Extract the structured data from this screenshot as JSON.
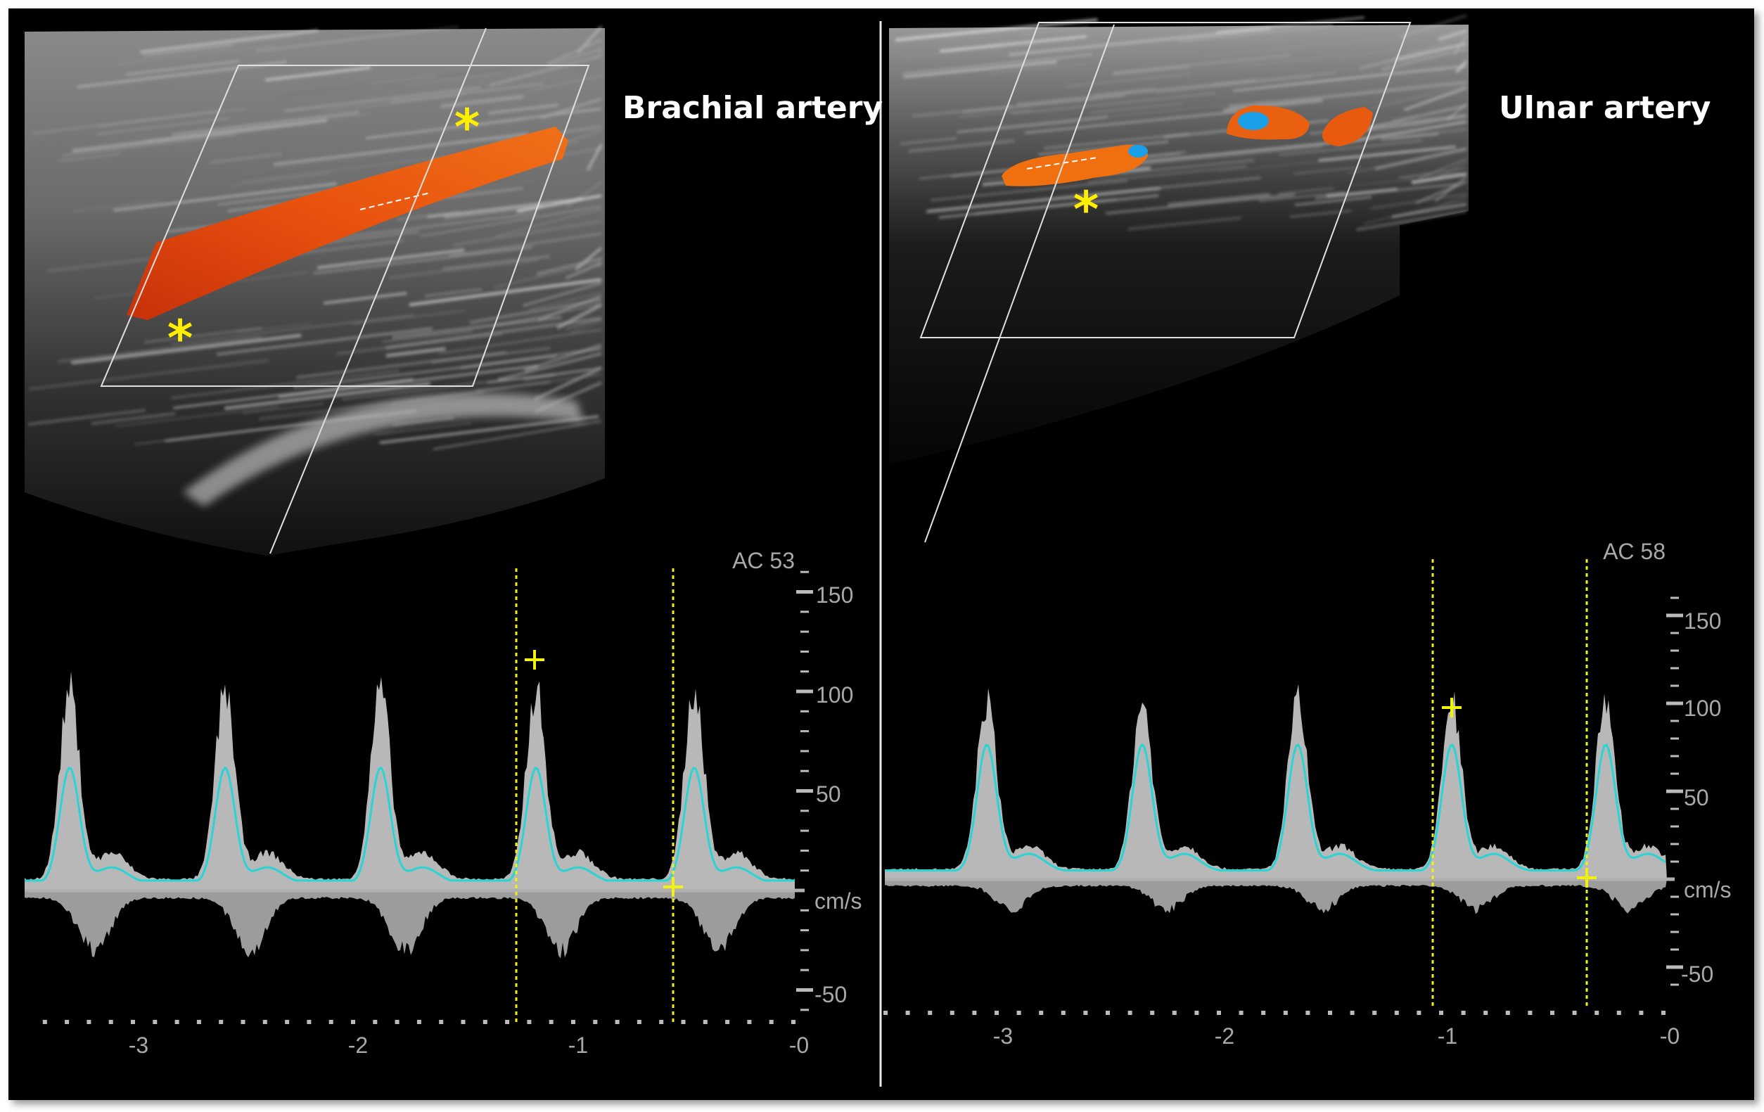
{
  "panels": [
    {
      "title": "Brachial artery",
      "ac_label": "AC 53",
      "unit": "cm/s",
      "velocity_ticks": [
        "150",
        "100",
        "50",
        "-50"
      ],
      "time_ticks": [
        "-3",
        "-2",
        "-1",
        "-0"
      ]
    },
    {
      "title": "Ulnar artery",
      "ac_label": "AC 58",
      "unit": "cm/s",
      "velocity_ticks": [
        "150",
        "100",
        "50",
        "-50"
      ],
      "time_ticks": [
        "-3",
        "-2",
        "-1",
        "-0"
      ]
    }
  ],
  "colors": {
    "background": "#000000",
    "mean_velocity_trace": "#2ad4d4",
    "caliper": "#f2f20a",
    "marker_asterisk": "#ffee00",
    "color_doppler_flow": "#e8500e",
    "color_doppler_reverse": "#1aa0e8"
  }
}
